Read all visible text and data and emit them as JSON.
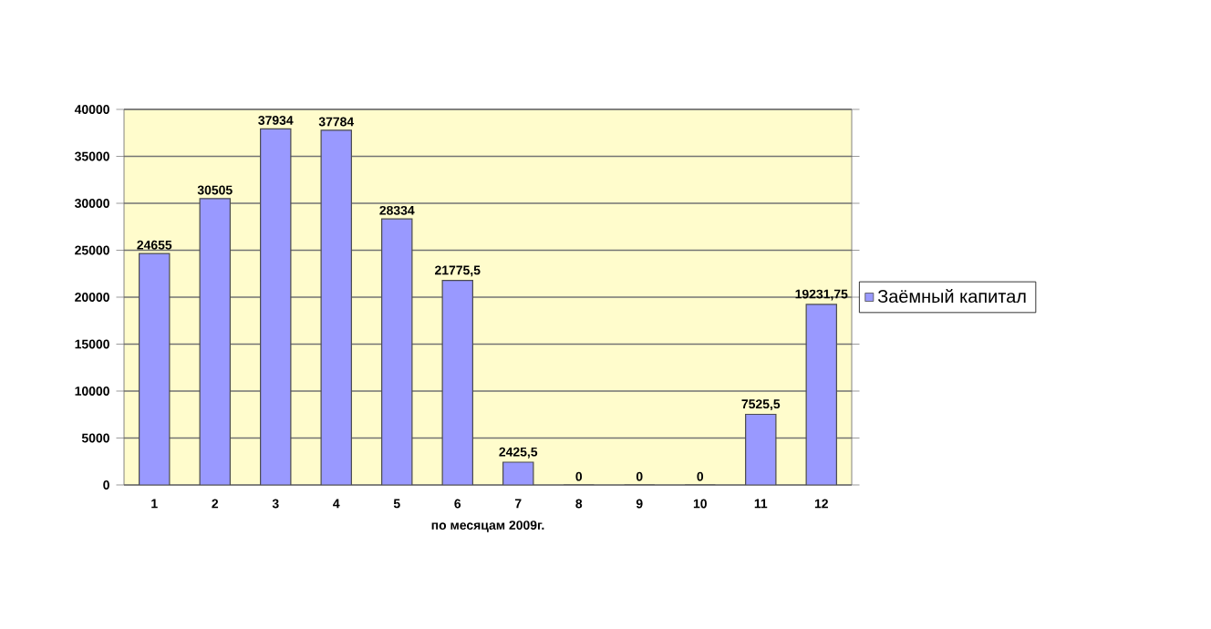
{
  "chart_data": {
    "type": "bar",
    "xlabel": "по месяцам  2009г.",
    "categories": [
      "1",
      "2",
      "3",
      "4",
      "5",
      "6",
      "7",
      "8",
      "9",
      "10",
      "11",
      "12"
    ],
    "series": [
      {
        "name": "Заёмный капитал",
        "color": "#9999ff",
        "values": [
          24655,
          30505,
          37934,
          37784,
          28334,
          21775.5,
          2425.5,
          0,
          0,
          0,
          7525.5,
          19231.75
        ],
        "value_labels": [
          "24655",
          "30505",
          "37934",
          "37784",
          "28334",
          "21775,5",
          "2425,5",
          "0",
          "0",
          "0",
          "7525,5",
          "19231,75"
        ]
      }
    ],
    "ylim": [
      0,
      40000
    ],
    "yticks": [
      0,
      5000,
      10000,
      15000,
      20000,
      25000,
      30000,
      35000,
      40000
    ],
    "grid": "y",
    "legend": "right"
  }
}
